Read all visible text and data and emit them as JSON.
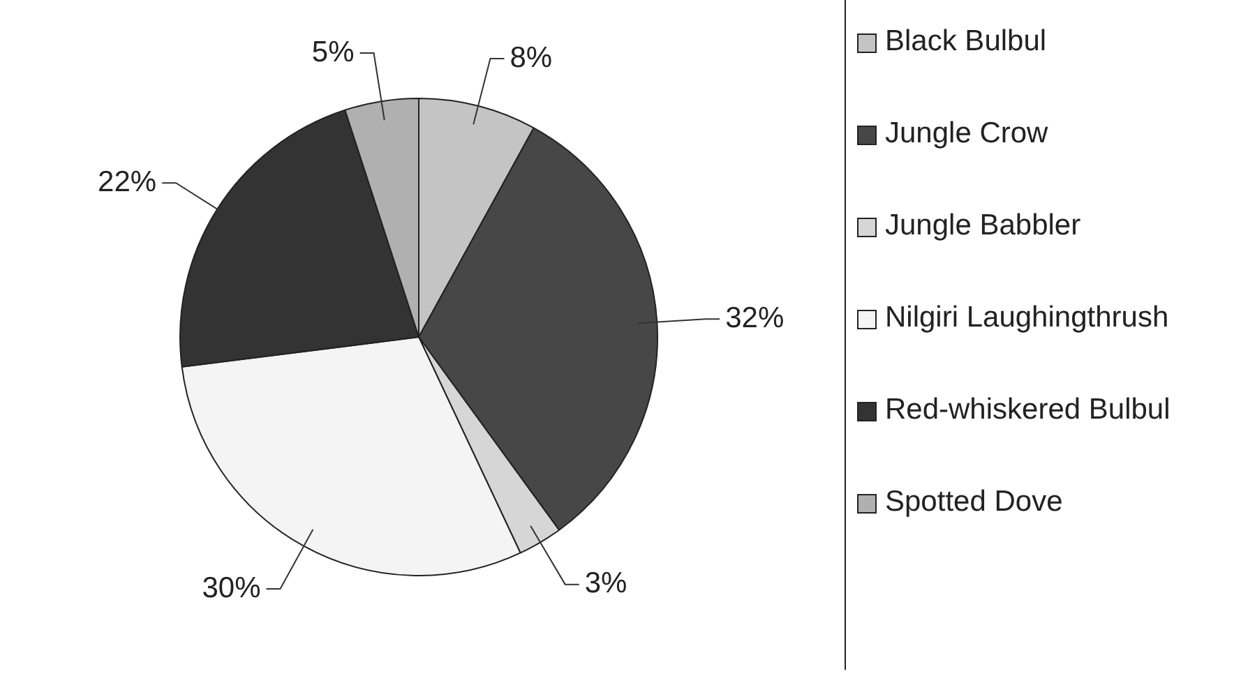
{
  "chart_data": {
    "type": "pie",
    "categories": [
      "Black Bulbul",
      "Jungle Crow",
      "Jungle Babbler",
      "Nilgiri Laughingthrush",
      "Red-whiskered Bulbul",
      "Spotted Dove"
    ],
    "values": [
      8,
      32,
      3,
      30,
      22,
      5
    ],
    "value_labels": [
      "8%",
      "32%",
      "3%",
      "30%",
      "22%",
      "5%"
    ],
    "colors": [
      "#c4c4c4",
      "#474747",
      "#d6d6d6",
      "#f4f4f4",
      "#333333",
      "#b0b0b0"
    ],
    "legend": "right"
  }
}
